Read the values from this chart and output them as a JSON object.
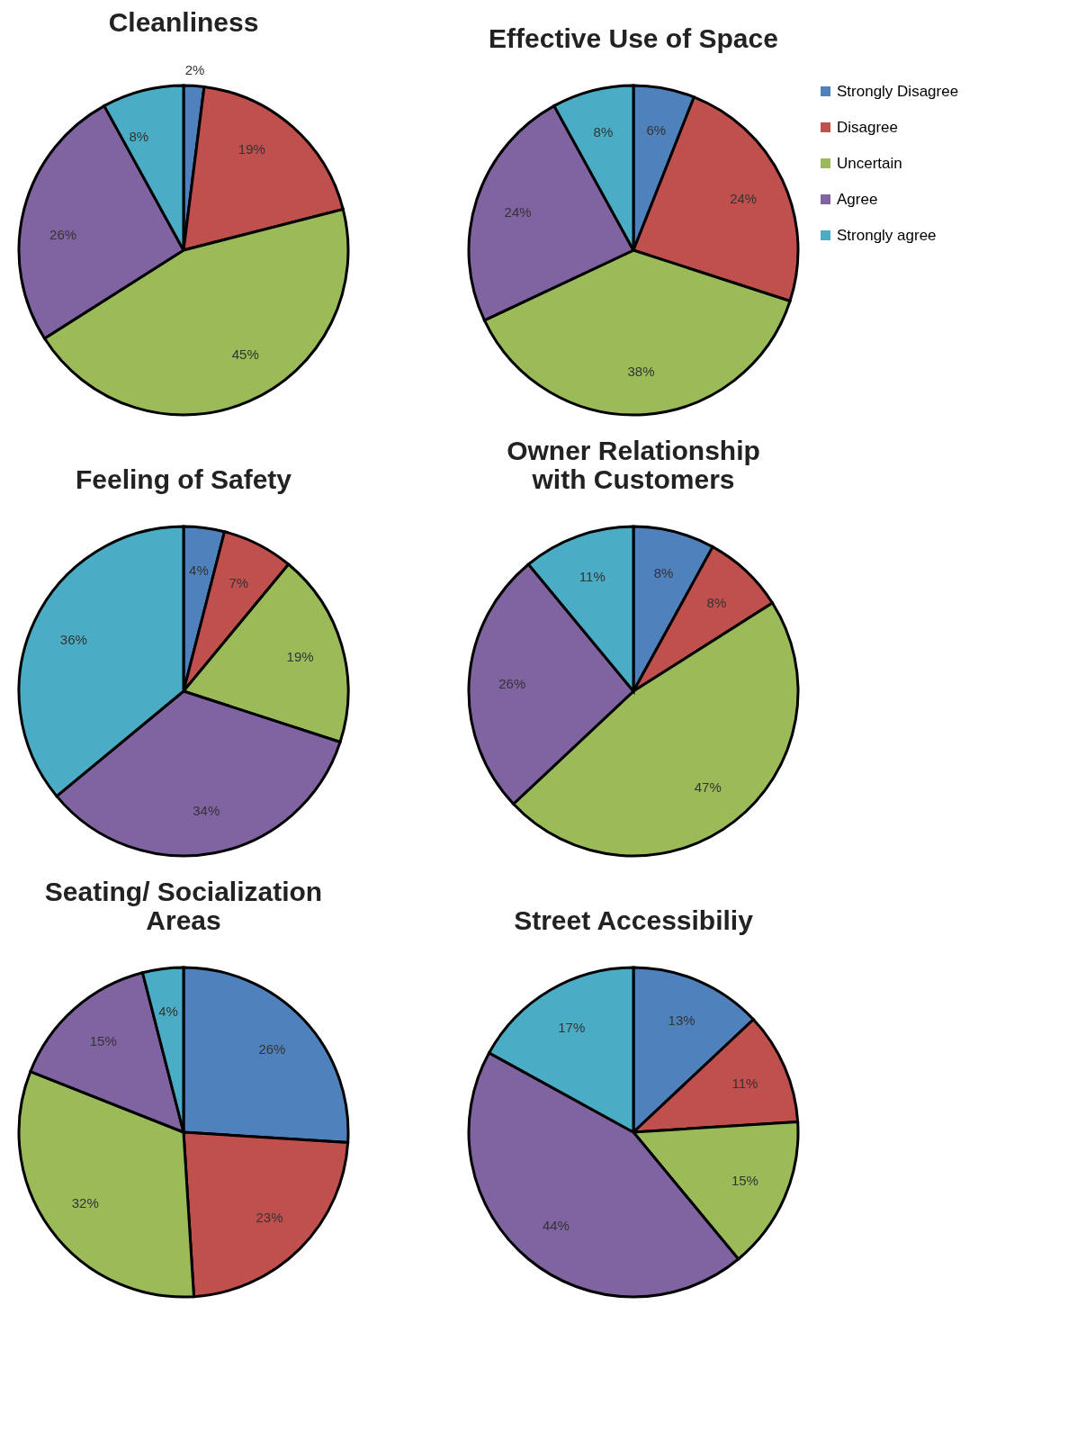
{
  "chart_data": [
    {
      "type": "pie",
      "title": "Cleanliness",
      "categories": [
        null,
        null,
        null,
        null,
        null
      ],
      "values": [
        2,
        19,
        45,
        26,
        8
      ],
      "value_labels": [
        "2%",
        "19%",
        "45%",
        "26%",
        "8%"
      ],
      "colors": [
        "#4f81bd",
        "#c0504d",
        "#9bbb59",
        "#8064a2",
        "#4bacc6"
      ]
    },
    {
      "type": "pie",
      "title": "Effective Use of Space",
      "categories": [
        "Strongly Disagree",
        "Disagree",
        "Uncertain",
        "Agree",
        "Strongly agree"
      ],
      "values": [
        6,
        24,
        38,
        24,
        8
      ],
      "value_labels": [
        "6%",
        "24%",
        "38%",
        "24%",
        "8%"
      ],
      "colors": [
        "#4f81bd",
        "#c0504d",
        "#9bbb59",
        "#8064a2",
        "#4bacc6"
      ],
      "legend": "right"
    },
    {
      "type": "pie",
      "title": "Feeling of Safety",
      "categories": [
        null,
        null,
        null,
        null,
        null
      ],
      "values": [
        4,
        7,
        19,
        34,
        36
      ],
      "value_labels": [
        "4%",
        "7%",
        "19%",
        "34%",
        "36%"
      ],
      "colors": [
        "#4f81bd",
        "#c0504d",
        "#9bbb59",
        "#8064a2",
        "#4bacc6"
      ]
    },
    {
      "type": "pie",
      "title": "Owner Relationship with Customers",
      "categories": [
        null,
        null,
        null,
        null,
        null
      ],
      "values": [
        8,
        8,
        47,
        26,
        11
      ],
      "value_labels": [
        "8%",
        "8%",
        "47%",
        "26%",
        "11%"
      ],
      "colors": [
        "#4f81bd",
        "#c0504d",
        "#9bbb59",
        "#8064a2",
        "#4bacc6"
      ]
    },
    {
      "type": "pie",
      "title": "Seating/ Socialization Areas",
      "categories": [
        null,
        null,
        null,
        null,
        null
      ],
      "values": [
        26,
        23,
        32,
        15,
        4
      ],
      "value_labels": [
        "26%",
        "23%",
        "32%",
        "15%",
        "4%"
      ],
      "colors": [
        "#4f81bd",
        "#c0504d",
        "#9bbb59",
        "#8064a2",
        "#4bacc6"
      ]
    },
    {
      "type": "pie",
      "title": "Street Accessibiliy",
      "categories": [
        null,
        null,
        null,
        null,
        null
      ],
      "values": [
        13,
        11,
        15,
        44,
        17
      ],
      "value_labels": [
        "13%",
        "11%",
        "15%",
        "44%",
        "17%"
      ],
      "colors": [
        "#4f81bd",
        "#c0504d",
        "#9bbb59",
        "#8064a2",
        "#4bacc6"
      ]
    }
  ]
}
